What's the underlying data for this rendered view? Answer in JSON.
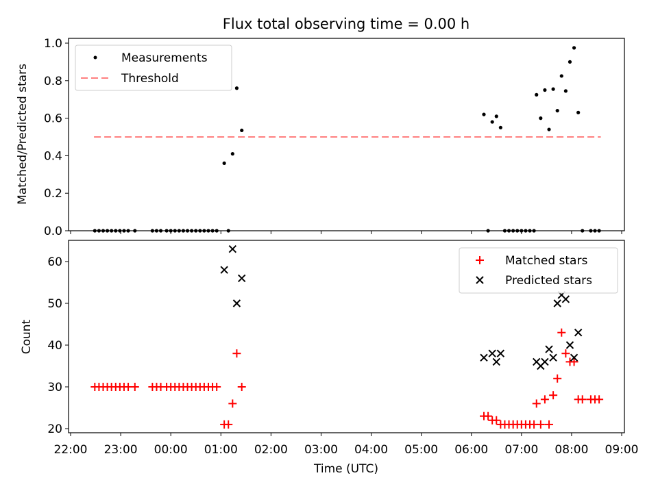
{
  "chart_data": [
    {
      "type": "scatter",
      "title": "Flux total observing time = 0.00 h",
      "xlabel": "",
      "ylabel": "Matched/Predicted stars",
      "xlim": [
        "22:00",
        "09:00"
      ],
      "ylim": [
        0,
        1.0
      ],
      "y_ticks": [
        "0.0",
        "0.2",
        "0.4",
        "0.6",
        "0.8",
        "1.0"
      ],
      "x_tick_labels_shown": false,
      "grid": false,
      "legend_position": "top-left",
      "threshold": 0.5,
      "threshold_range": [
        "22:28",
        "08:35"
      ],
      "series": [
        {
          "name": "Measurements",
          "marker": "dot",
          "color": "#000000",
          "points": [
            [
              "22:29",
              0
            ],
            [
              "22:34",
              0
            ],
            [
              "22:39",
              0
            ],
            [
              "22:44",
              0
            ],
            [
              "22:49",
              0
            ],
            [
              "22:54",
              0
            ],
            [
              "22:59",
              0
            ],
            [
              "23:04",
              0
            ],
            [
              "23:09",
              0
            ],
            [
              "23:17",
              0
            ],
            [
              "23:38",
              0
            ],
            [
              "23:43",
              0
            ],
            [
              "23:48",
              0
            ],
            [
              "23:55",
              0
            ],
            [
              "24:00",
              0
            ],
            [
              "24:05",
              0
            ],
            [
              "24:10",
              0
            ],
            [
              "24:15",
              0
            ],
            [
              "24:20",
              0
            ],
            [
              "24:25",
              0
            ],
            [
              "24:30",
              0
            ],
            [
              "24:35",
              0
            ],
            [
              "24:40",
              0
            ],
            [
              "24:45",
              0
            ],
            [
              "24:50",
              0
            ],
            [
              "24:55",
              0
            ],
            [
              "25:04",
              0.36
            ],
            [
              "25:09",
              0
            ],
            [
              "25:14",
              0.41
            ],
            [
              "25:19",
              0.76
            ],
            [
              "25:25",
              0.535
            ],
            [
              "30:15",
              0.62
            ],
            [
              "30:20",
              0
            ],
            [
              "30:25",
              0.58
            ],
            [
              "30:30",
              0.61
            ],
            [
              "30:35",
              0.55
            ],
            [
              "30:40",
              0
            ],
            [
              "30:45",
              0
            ],
            [
              "30:50",
              0
            ],
            [
              "30:55",
              0
            ],
            [
              "31:00",
              0
            ],
            [
              "31:05",
              0
            ],
            [
              "31:10",
              0
            ],
            [
              "31:15",
              0
            ],
            [
              "31:18",
              0.725
            ],
            [
              "31:23",
              0.6
            ],
            [
              "31:28",
              0.75
            ],
            [
              "31:33",
              0.54
            ],
            [
              "31:38",
              0.755
            ],
            [
              "31:43",
              0.64
            ],
            [
              "31:48",
              0.825
            ],
            [
              "31:53",
              0.745
            ],
            [
              "31:58",
              0.9
            ],
            [
              "32:03",
              0.975
            ],
            [
              "32:08",
              0.63
            ],
            [
              "32:13",
              0
            ],
            [
              "32:23",
              0
            ],
            [
              "32:28",
              0
            ],
            [
              "32:33",
              0
            ]
          ]
        }
      ],
      "threshold_series": {
        "name": "Threshold",
        "color": "#ff7f7f",
        "style": "dashed"
      }
    },
    {
      "type": "scatter",
      "title": "",
      "xlabel": "Time (UTC)",
      "ylabel": "Count",
      "xlim": [
        "22:00",
        "09:00"
      ],
      "ylim": [
        19.5,
        65
      ],
      "x_ticks": [
        "22:00",
        "23:00",
        "00:00",
        "01:00",
        "02:00",
        "03:00",
        "04:00",
        "05:00",
        "06:00",
        "07:00",
        "08:00",
        "09:00"
      ],
      "y_ticks": [
        "20",
        "30",
        "40",
        "50",
        "60"
      ],
      "grid": false,
      "legend_position": "top-right",
      "series": [
        {
          "name": "Matched stars",
          "marker": "plus",
          "color": "#ff0000",
          "points": [
            [
              "22:29",
              30
            ],
            [
              "22:34",
              30
            ],
            [
              "22:39",
              30
            ],
            [
              "22:44",
              30
            ],
            [
              "22:49",
              30
            ],
            [
              "22:54",
              30
            ],
            [
              "22:59",
              30
            ],
            [
              "23:04",
              30
            ],
            [
              "23:09",
              30
            ],
            [
              "23:17",
              30
            ],
            [
              "23:38",
              30
            ],
            [
              "23:43",
              30
            ],
            [
              "23:48",
              30
            ],
            [
              "23:55",
              30
            ],
            [
              "24:00",
              30
            ],
            [
              "24:05",
              30
            ],
            [
              "24:10",
              30
            ],
            [
              "24:15",
              30
            ],
            [
              "24:20",
              30
            ],
            [
              "24:25",
              30
            ],
            [
              "24:30",
              30
            ],
            [
              "24:35",
              30
            ],
            [
              "24:40",
              30
            ],
            [
              "24:45",
              30
            ],
            [
              "24:50",
              30
            ],
            [
              "24:55",
              30
            ],
            [
              "25:04",
              21
            ],
            [
              "25:09",
              21
            ],
            [
              "25:14",
              26
            ],
            [
              "25:19",
              38
            ],
            [
              "25:25",
              30
            ],
            [
              "30:15",
              23
            ],
            [
              "30:20",
              23
            ],
            [
              "30:25",
              22
            ],
            [
              "30:30",
              22
            ],
            [
              "30:35",
              21
            ],
            [
              "30:40",
              21
            ],
            [
              "30:45",
              21
            ],
            [
              "30:50",
              21
            ],
            [
              "30:55",
              21
            ],
            [
              "31:00",
              21
            ],
            [
              "31:05",
              21
            ],
            [
              "31:10",
              21
            ],
            [
              "31:15",
              21
            ],
            [
              "31:18",
              26
            ],
            [
              "31:23",
              21
            ],
            [
              "31:28",
              27
            ],
            [
              "31:33",
              21
            ],
            [
              "31:38",
              28
            ],
            [
              "31:43",
              32
            ],
            [
              "31:48",
              43
            ],
            [
              "31:53",
              38
            ],
            [
              "31:58",
              36
            ],
            [
              "32:03",
              36
            ],
            [
              "32:08",
              27
            ],
            [
              "32:13",
              27
            ],
            [
              "32:23",
              27
            ],
            [
              "32:28",
              27
            ],
            [
              "32:33",
              27
            ]
          ]
        },
        {
          "name": "Predicted stars",
          "marker": "x",
          "color": "#000000",
          "points": [
            [
              "25:04",
              58
            ],
            [
              "25:14",
              63
            ],
            [
              "25:19",
              50
            ],
            [
              "25:25",
              56
            ],
            [
              "30:15",
              37
            ],
            [
              "30:25",
              38
            ],
            [
              "30:30",
              36
            ],
            [
              "30:35",
              38
            ],
            [
              "31:18",
              36
            ],
            [
              "31:23",
              35
            ],
            [
              "31:28",
              36
            ],
            [
              "31:33",
              39
            ],
            [
              "31:38",
              37
            ],
            [
              "31:43",
              50
            ],
            [
              "31:48",
              52
            ],
            [
              "31:53",
              51
            ],
            [
              "31:58",
              40
            ],
            [
              "32:03",
              37
            ],
            [
              "32:08",
              43
            ]
          ]
        }
      ]
    }
  ]
}
